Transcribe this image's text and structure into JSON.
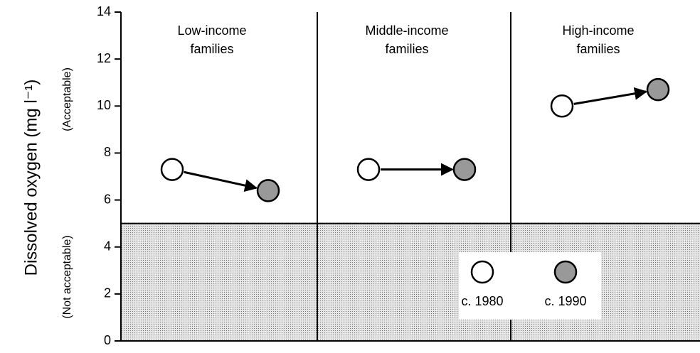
{
  "chart_data": {
    "type": "scatter",
    "ylabel": "Dissolved oxygen  (mg l⁻¹)",
    "upper_label": "(Acceptable)",
    "lower_label": "(Not acceptable)",
    "categories": [
      [
        "Low-income",
        "families"
      ],
      [
        "Middle-income",
        "families"
      ],
      [
        "High-income",
        "families"
      ]
    ],
    "series": [
      {
        "name": "c. 1980",
        "color": "#ffffff",
        "values": [
          7.3,
          7.3,
          10.0
        ]
      },
      {
        "name": "c. 1990",
        "color": "#999999",
        "values": [
          6.4,
          7.3,
          10.7
        ]
      }
    ],
    "shaded_below": 5,
    "ylim": [
      0,
      14
    ],
    "yticks": [
      0,
      2,
      4,
      6,
      8,
      10,
      12,
      14
    ]
  }
}
